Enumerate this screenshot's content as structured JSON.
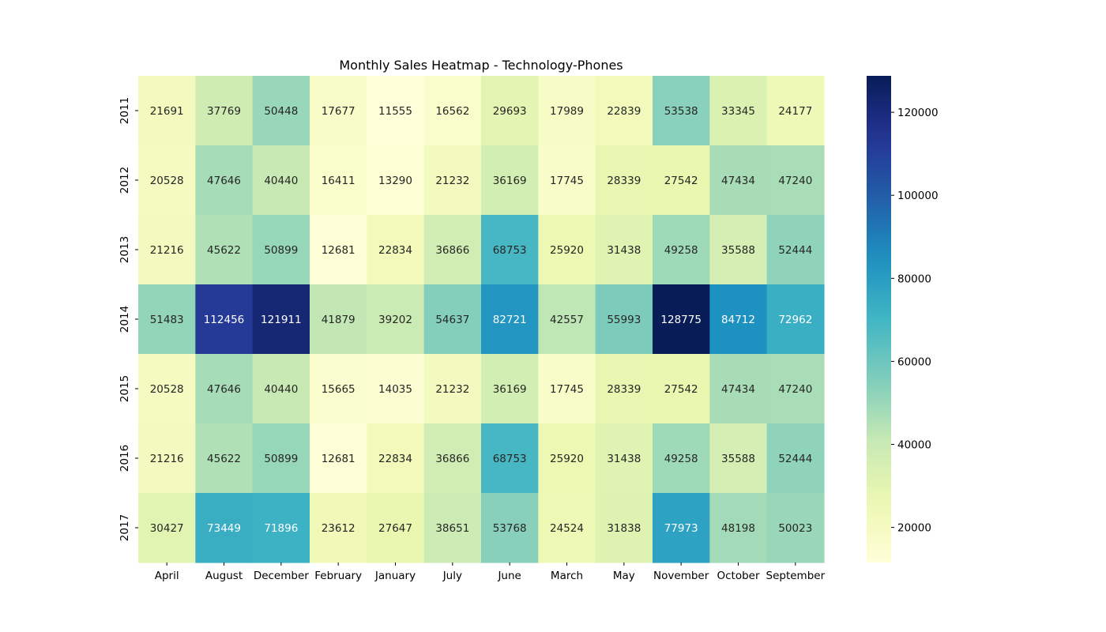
{
  "chart_data": {
    "type": "heatmap",
    "title": "Monthly Sales Heatmap - Technology-Phones",
    "xlabel": "",
    "ylabel": "",
    "x_categories": [
      "April",
      "August",
      "December",
      "February",
      "January",
      "July",
      "June",
      "March",
      "May",
      "November",
      "October",
      "September"
    ],
    "y_categories": [
      "2011",
      "2012",
      "2013",
      "2014",
      "2015",
      "2016",
      "2017"
    ],
    "values": [
      [
        21691,
        37769,
        50448,
        17677,
        11555,
        16562,
        29693,
        17989,
        22839,
        53538,
        33345,
        24177
      ],
      [
        20528,
        47646,
        40440,
        16411,
        13290,
        21232,
        36169,
        17745,
        28339,
        27542,
        47434,
        47240
      ],
      [
        21216,
        45622,
        50899,
        12681,
        22834,
        36866,
        68753,
        25920,
        31438,
        49258,
        35588,
        52444
      ],
      [
        51483,
        112456,
        121911,
        41879,
        39202,
        54637,
        82721,
        42557,
        55993,
        128775,
        84712,
        72962
      ],
      [
        20528,
        47646,
        40440,
        15665,
        14035,
        21232,
        36169,
        17745,
        28339,
        27542,
        47434,
        47240
      ],
      [
        21216,
        45622,
        50899,
        12681,
        22834,
        36866,
        68753,
        25920,
        31438,
        49258,
        35588,
        52444
      ],
      [
        30427,
        73449,
        71896,
        23612,
        27647,
        38651,
        53768,
        24524,
        31838,
        77973,
        48198,
        50023
      ]
    ],
    "colormap": "YlGnBu",
    "colorbar": {
      "min": 11555,
      "max": 128775,
      "ticks": [
        20000,
        40000,
        60000,
        80000,
        100000,
        120000
      ],
      "tick_labels": [
        "20000",
        "40000",
        "60000",
        "80000",
        "100000",
        "120000"
      ]
    },
    "annotations": true,
    "grid": false
  }
}
